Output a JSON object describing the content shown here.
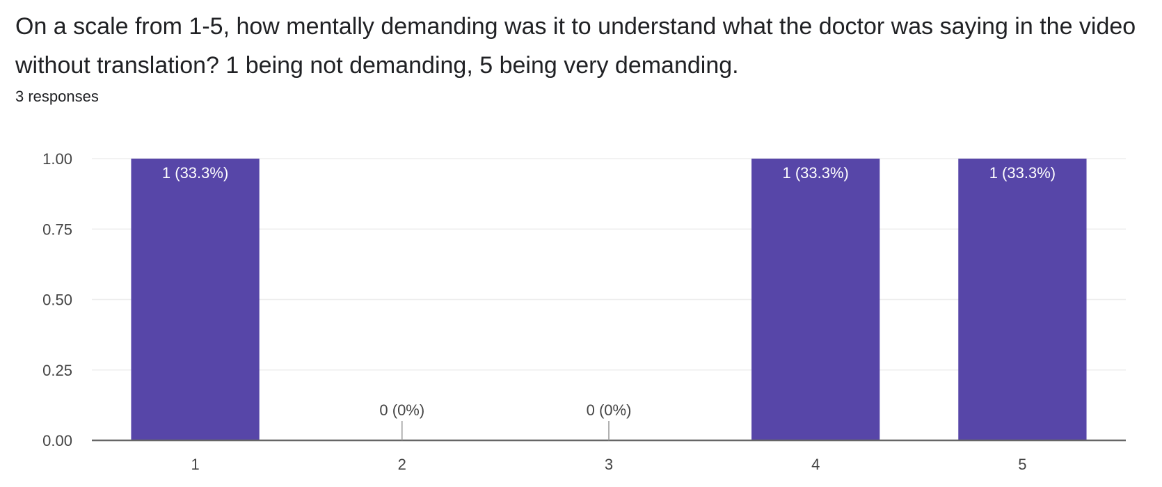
{
  "question": {
    "text": "On a scale from 1-5, how mentally demanding was it to understand what the doctor was saying in the video without translation? 1 being not demanding, 5 being very demanding.",
    "responses": "3 responses"
  },
  "colors": {
    "bar": "#5746a8",
    "axis": "#666666",
    "grid": "#eeeeee",
    "text": "#202124"
  },
  "chart_data": {
    "type": "bar",
    "categories": [
      "1",
      "2",
      "3",
      "4",
      "5"
    ],
    "values": [
      1,
      0,
      0,
      1,
      1
    ],
    "data_labels": [
      "1 (33.3%)",
      "0 (0%)",
      "0 (0%)",
      "1 (33.3%)",
      "1 (33.3%)"
    ],
    "ylim": [
      0,
      1
    ],
    "yticks": [
      "0.00",
      "0.25",
      "0.50",
      "0.75",
      "1.00"
    ],
    "title": "",
    "xlabel": "",
    "ylabel": "",
    "grid": true
  }
}
